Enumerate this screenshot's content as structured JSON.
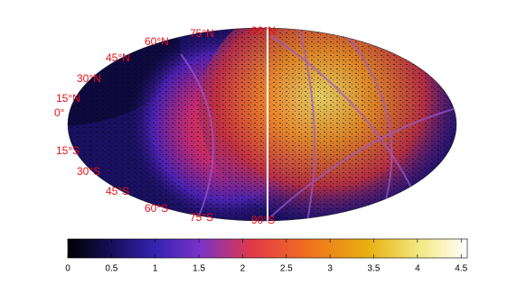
{
  "map": {
    "latitude_labels": [
      "90°N",
      "75°N",
      "60°N",
      "45°N",
      "30°N",
      "15°N",
      "0°",
      "15°S",
      "30°S",
      "45°S",
      "60°S",
      "75°S",
      "90°S"
    ]
  },
  "colorbar": {
    "clim": [
      0,
      4.57
    ],
    "ticks": [
      0,
      0.5,
      1,
      1.5,
      2,
      2.5,
      3,
      3.5,
      4,
      4.5
    ]
  }
}
